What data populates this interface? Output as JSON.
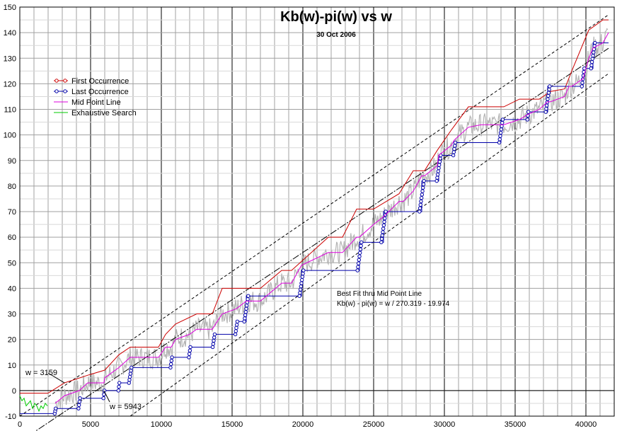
{
  "chart_data": {
    "type": "line",
    "title": "Kb(w)-pi(w)  vs  w",
    "subtitle": "30 Oct 2006",
    "xlim": [
      0,
      42000
    ],
    "ylim": [
      -10,
      150
    ],
    "x_ticks": [
      0,
      5000,
      10000,
      15000,
      20000,
      25000,
      30000,
      35000,
      40000
    ],
    "y_ticks": [
      -10,
      0,
      10,
      20,
      30,
      40,
      50,
      60,
      70,
      80,
      90,
      100,
      110,
      120,
      130,
      140,
      150
    ],
    "grid": true,
    "legend_position": "top-left",
    "colors": {
      "first": "#cc0000",
      "last": "#0000aa",
      "mid": "#dd00dd",
      "exhaustive": "#00cc00",
      "gray": "#b4b4b4",
      "fit": "#000000"
    },
    "series": [
      {
        "name": "First Occurrence",
        "x": [
          0,
          2000,
          3159,
          3159,
          4800,
          4800,
          6000,
          6000,
          7000,
          7000,
          7800,
          7800,
          9800,
          9800,
          10300,
          10300,
          11000,
          11000,
          12500,
          12500,
          13600,
          13600,
          14300,
          14300,
          17000,
          17000,
          18500,
          18500,
          19200,
          19200,
          21800,
          21800,
          22800,
          22800,
          23800,
          23800,
          25000,
          25000,
          26800,
          26800,
          27800,
          27800,
          28600,
          28600,
          29500,
          29500,
          30500,
          30500,
          31700,
          31700,
          34200,
          34200,
          35300,
          35300,
          36700,
          36700,
          37500,
          37500,
          38500,
          38500,
          39000,
          39000,
          40200,
          40200,
          41200,
          41200,
          41600
        ],
        "y": [
          -1,
          -1,
          3,
          3,
          6,
          6,
          8,
          8,
          14,
          14,
          17,
          17,
          17,
          17,
          22,
          22,
          26,
          26,
          30,
          30,
          30,
          30,
          40,
          40,
          40,
          40,
          47,
          47,
          47,
          47,
          60,
          60,
          60,
          60,
          71,
          71,
          71,
          71,
          77,
          77,
          86,
          86,
          86,
          86,
          94,
          94,
          102,
          102,
          111,
          111,
          111,
          111,
          114,
          114,
          114,
          114,
          117,
          117,
          118,
          118,
          125,
          125,
          141,
          141,
          145,
          145,
          145
        ]
      },
      {
        "name": "Last Occurrence",
        "x": [
          0,
          2500,
          2500,
          4200,
          4200,
          5943,
          5943,
          7000,
          7000,
          7800,
          7800,
          9500,
          9500,
          10700,
          10700,
          12000,
          12000,
          13700,
          13700,
          15300,
          15300,
          16000,
          16000,
          18500,
          18500,
          19900,
          19900,
          22800,
          22800,
          24000,
          24000,
          25700,
          25700,
          27100,
          27100,
          28400,
          28400,
          29600,
          29600,
          30700,
          30700,
          32600,
          32600,
          34000,
          34000,
          35900,
          35900,
          37300,
          37300,
          38800,
          38800,
          39800,
          39800,
          40500,
          40500,
          41600
        ],
        "y": [
          -9,
          -9,
          -7,
          -7,
          -3,
          -3,
          0,
          0,
          3,
          3,
          9,
          9,
          9,
          9,
          13,
          13,
          17,
          17,
          22,
          22,
          27,
          27,
          37,
          37,
          37,
          37,
          47,
          47,
          47,
          47,
          58,
          58,
          70,
          70,
          70,
          70,
          82,
          82,
          92,
          92,
          97,
          97,
          97,
          97,
          106,
          106,
          109,
          109,
          119,
          119,
          119,
          119,
          126,
          126,
          136,
          136
        ]
      },
      {
        "name": "Mid Point Line",
        "x": [
          2500,
          3159,
          4200,
          4800,
          5943,
          6000,
          7000,
          7800,
          9500,
          9800,
          10300,
          10700,
          11000,
          12000,
          12500,
          13600,
          14300,
          15300,
          16000,
          17000,
          18500,
          19200,
          19900,
          21800,
          22800,
          23800,
          24000,
          25000,
          25700,
          26800,
          27100,
          27800,
          28400,
          28600,
          29500,
          29600,
          30500,
          30700,
          31700,
          32600,
          34000,
          34200,
          35300,
          35900,
          36700,
          37300,
          37500,
          38500,
          38800,
          39000,
          39800,
          40200,
          40500,
          41200,
          41600
        ],
        "y": [
          -5,
          -2,
          0,
          3,
          3,
          5,
          9,
          13,
          13,
          13,
          17,
          17,
          20,
          22,
          24,
          24,
          30,
          32,
          35,
          35,
          42,
          42,
          49,
          54,
          54,
          60,
          60,
          65,
          68,
          74,
          74,
          78,
          84,
          84,
          88,
          92,
          96,
          98,
          103,
          104,
          104,
          104,
          106,
          108,
          110,
          113,
          113,
          115,
          119,
          119,
          122,
          130,
          134,
          136,
          140
        ]
      },
      {
        "name": "Exhaustive Search",
        "x": [
          0,
          150,
          300,
          450,
          600,
          750,
          900,
          1050,
          1200,
          1350,
          1500,
          1650,
          1800,
          1950
        ],
        "y": [
          -2,
          -4,
          -3,
          -6,
          -5,
          -4,
          -7,
          -5,
          -6,
          -8,
          -6,
          -7,
          -5,
          -6
        ]
      }
    ],
    "best_fit": {
      "label_line1": "Best Fit thru Mid Point Line",
      "label_line2": "Kb(w) - pi(w) = w / 270.319 - 19.974",
      "x": [
        0,
        41600
      ],
      "y": [
        -19.974,
        133.9
      ]
    },
    "bounds": [
      {
        "x": [
          0,
          41600
        ],
        "y": [
          -10,
          147
        ]
      },
      {
        "x": [
          7800,
          41600
        ],
        "y": [
          -10,
          124
        ]
      }
    ],
    "annotations": [
      {
        "text": "w = 3159",
        "x": 3159,
        "y": 3
      },
      {
        "text": "w = 5943",
        "x": 5943,
        "y": 0
      }
    ]
  }
}
